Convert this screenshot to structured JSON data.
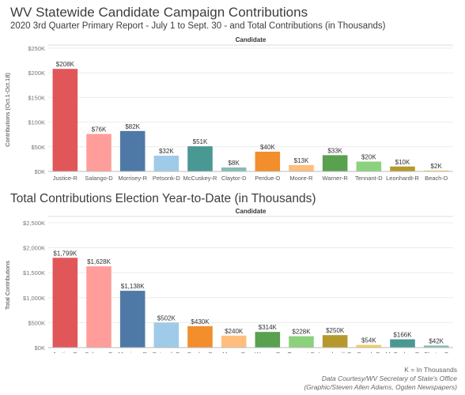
{
  "header": {
    "title": "WV Statewide Candidate Campaign Contributions",
    "subtitle": "2020 3rd Quarter Primary Report - July 1 to Sept. 30 - and Total Contributions (in Thousands)",
    "second_title": "Total Contributions Election Year-to-Date (in Thousands)"
  },
  "footer": {
    "note": "K = In Thousands",
    "source": "Data Courtesy/WV Secretary of State's Office",
    "credit": "(Graphic/Steven Allen Adams, Ogden Newspapers)"
  },
  "chart_data": [
    {
      "type": "bar",
      "header_label": "Candidate",
      "ylabel": "Contributions (Oct.1-Oct.18)",
      "ylim": [
        0,
        250
      ],
      "ticks": [
        0,
        50,
        100,
        150,
        200,
        250
      ],
      "tick_labels": [
        "$0K",
        "$50K",
        "$100K",
        "$150K",
        "$200K",
        "$250K"
      ],
      "grid": true,
      "categories": [
        "Justice-R",
        "Salango-D",
        "Morrisey-R",
        "Petsonk-D",
        "McCuskey-R",
        "Claytor-D",
        "Perdue-D",
        "Moore-R",
        "Warner-R",
        "Tennant-D",
        "Leonhardt-R",
        "Beach-D"
      ],
      "values": [
        208,
        76,
        82,
        32,
        51,
        8,
        40,
        13,
        33,
        20,
        10,
        2
      ],
      "labels": [
        "$208K",
        "$76K",
        "$82K",
        "$32K",
        "$51K",
        "$8K",
        "$40K",
        "$13K",
        "$33K",
        "$20K",
        "$10K",
        "$2K"
      ],
      "colors": [
        "#e15759",
        "#ff9d9a",
        "#4e79a7",
        "#a0cbe8",
        "#499894",
        "#86bcb6",
        "#f28e2b",
        "#ffbe7d",
        "#59a14f",
        "#8cd17d",
        "#b6992d",
        "#f1ce63"
      ]
    },
    {
      "type": "bar",
      "header_label": "Candidate",
      "ylabel": "Total Contributions",
      "ylim": [
        0,
        2500
      ],
      "ticks": [
        0,
        500,
        1000,
        1500,
        2000,
        2500
      ],
      "tick_labels": [
        "$0K",
        "$500K",
        "$1,000K",
        "$1,500K",
        "$2,000K",
        "$2,500K"
      ],
      "grid": true,
      "categories": [
        "Justice-R",
        "Salango-D",
        "Morrisey-R",
        "Petsonk-D",
        "Perdue-D",
        "Moore-R",
        "Warner-R",
        "Tennant-D",
        "Leonhardt-R",
        "Beach-D",
        "McCuskey-R",
        "Claytor-D"
      ],
      "values": [
        1799,
        1628,
        1138,
        502,
        430,
        240,
        314,
        228,
        250,
        54,
        166,
        42
      ],
      "labels": [
        "$1,799K",
        "$1,628K",
        "$1,138K",
        "$502K",
        "$430K",
        "$240K",
        "$314K",
        "$228K",
        "$250K",
        "$54K",
        "$166K",
        "$42K"
      ],
      "colors": [
        "#e15759",
        "#ff9d9a",
        "#4e79a7",
        "#a0cbe8",
        "#f28e2b",
        "#ffbe7d",
        "#59a14f",
        "#8cd17d",
        "#b6992d",
        "#f1ce63",
        "#499894",
        "#86bcb6"
      ]
    }
  ]
}
